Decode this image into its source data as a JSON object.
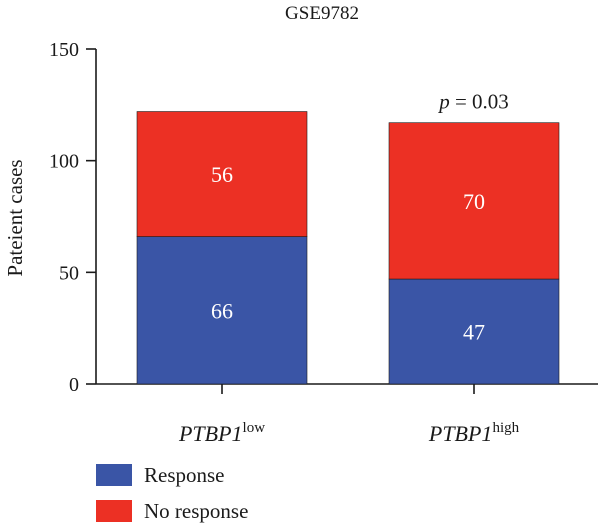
{
  "chart_data": {
    "type": "bar",
    "stacked": true,
    "title": "GSE9782",
    "xlabel": "",
    "ylabel": "Pateient cases",
    "ylim": [
      0,
      150
    ],
    "yticks": [
      0,
      50,
      100,
      150
    ],
    "categories": [
      {
        "base": "PTBP1",
        "sup": "low"
      },
      {
        "base": "PTBP1",
        "sup": "high"
      }
    ],
    "series": [
      {
        "name": "Response",
        "color": "#3a55a6",
        "values": [
          66,
          47
        ]
      },
      {
        "name": "No response",
        "color": "#ec3024",
        "values": [
          56,
          70
        ]
      }
    ],
    "annotations": [
      {
        "category_index": 1,
        "p_symbol": "p",
        "text": " = 0.03"
      }
    ],
    "legend": "bottom-left",
    "grid": false
  }
}
